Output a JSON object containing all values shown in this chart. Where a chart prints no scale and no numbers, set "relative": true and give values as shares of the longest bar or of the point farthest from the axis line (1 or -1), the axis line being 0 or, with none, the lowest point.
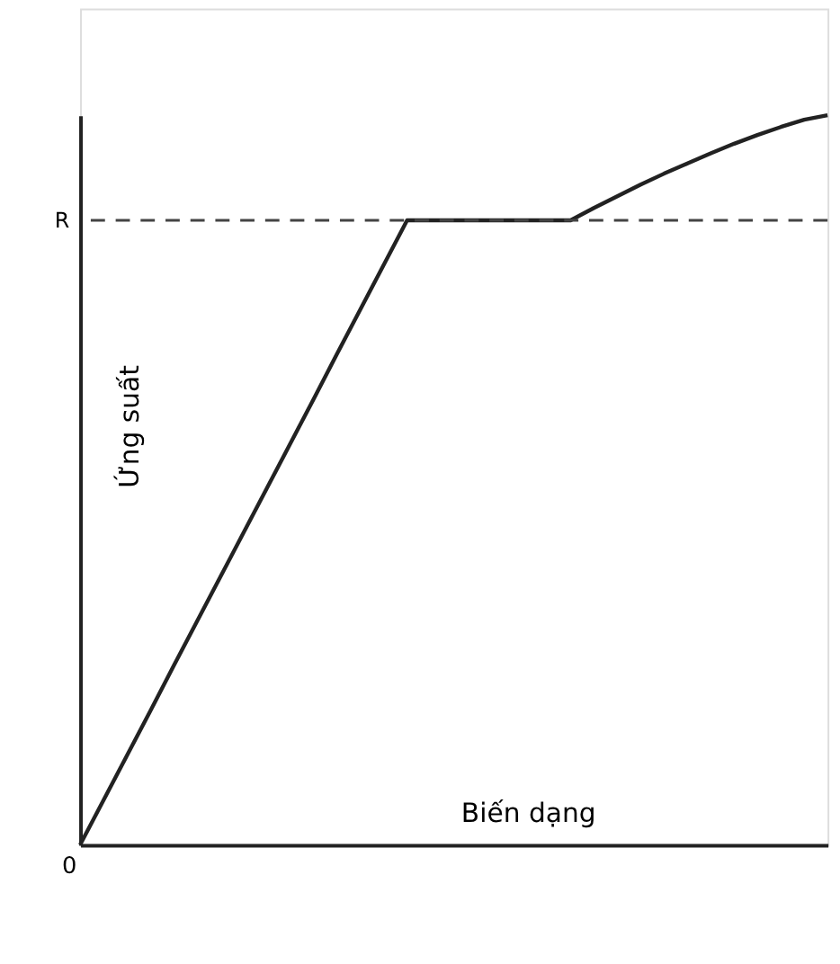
{
  "chart_data": {
    "type": "line",
    "relative": true,
    "xlabel": "Biến dạng",
    "ylabel": "Ứng suất",
    "categories": [
      null,
      null,
      null,
      null,
      null,
      null,
      null,
      null,
      null,
      null,
      null,
      null,
      null,
      null,
      null,
      null,
      null,
      null,
      null,
      null,
      null,
      null,
      null,
      null,
      null,
      null,
      null,
      null,
      null,
      null,
      null,
      null,
      null
    ],
    "series": [
      {
        "color": "#222222",
        "values": [
          0,
          0.061,
          0.122,
          0.183,
          0.245,
          0.306,
          0.367,
          0.428,
          0.489,
          0.55,
          0.611,
          0.673,
          0.734,
          0.795,
          0.856,
          0.856,
          0.856,
          0.856,
          0.856,
          0.856,
          0.856,
          0.856,
          0.873,
          0.889,
          0.905,
          0.92,
          0.934,
          0.948,
          0.961,
          0.973,
          0.984,
          0.994,
          1.0
        ]
      }
    ],
    "ref_lines": [
      {
        "axis": "y",
        "value": 0.856,
        "label": "R",
        "color": "#444444",
        "line_style": "dashed"
      }
    ],
    "annotations": [
      "0"
    ],
    "tick_labels": false,
    "grid": false,
    "marker": "none",
    "line_style": "solid"
  }
}
